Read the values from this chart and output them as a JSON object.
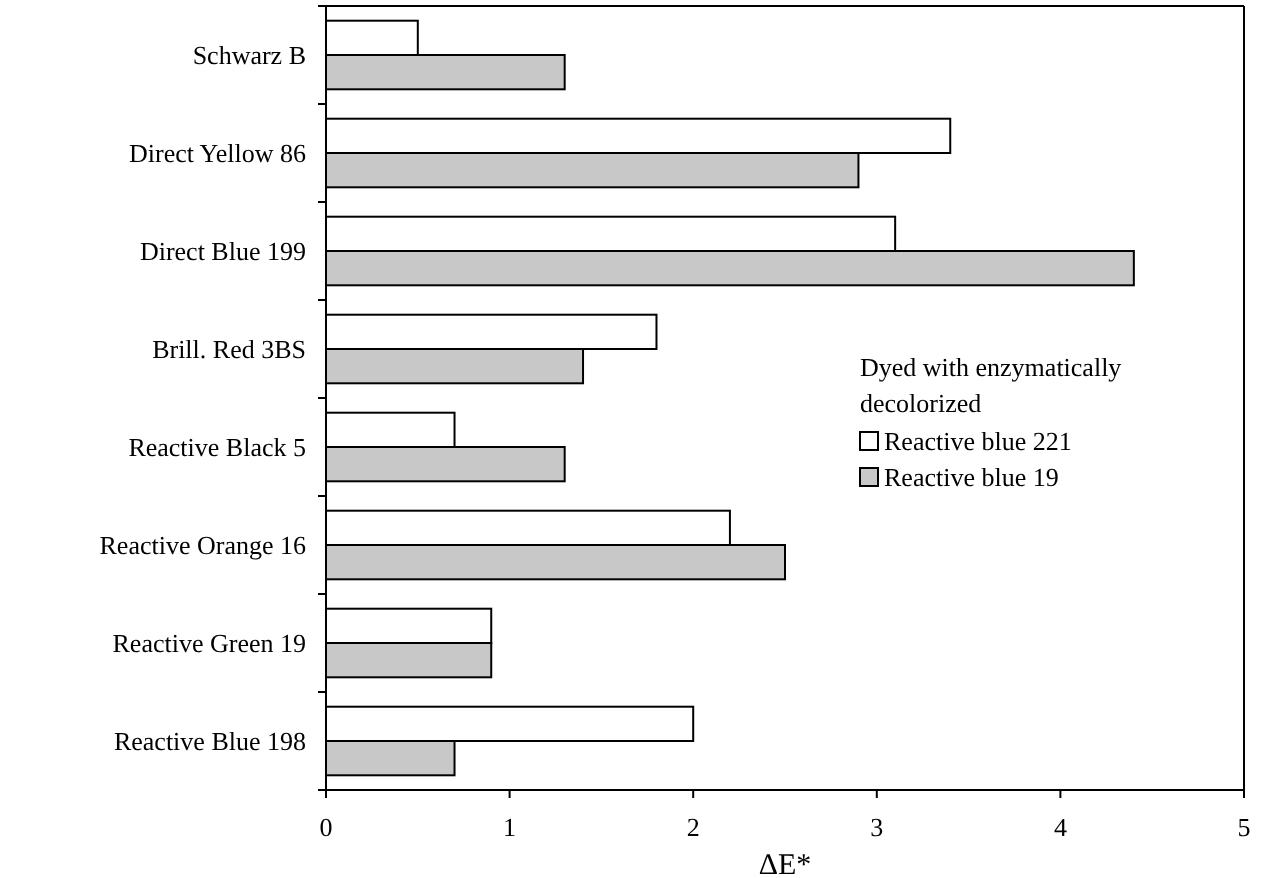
{
  "chart_data": {
    "type": "bar",
    "orientation": "horizontal",
    "xlabel": "ΔE*",
    "legend_title": "Dyed with enzymatically decolorized",
    "legend": "right",
    "grid": false,
    "categories": [
      "Schwarz B",
      "Direct Yellow 86",
      "Direct Blue 199",
      "Brill. Red 3BS",
      "Reactive Black 5",
      "Reactive Orange 16",
      "Reactive Green 19",
      "Reactive Blue 198"
    ],
    "series": [
      {
        "name": "Reactive blue 221",
        "color": "#ffffff",
        "values": [
          0.5,
          3.4,
          3.1,
          1.8,
          0.7,
          2.2,
          0.9,
          2.0
        ]
      },
      {
        "name": "Reactive blue 19",
        "color": "#c8c8c8",
        "values": [
          1.3,
          2.9,
          4.4,
          1.4,
          1.3,
          2.5,
          0.9,
          0.7
        ]
      }
    ],
    "xlim": [
      0,
      5
    ],
    "xticks": [
      0,
      1,
      2,
      3,
      4,
      5
    ]
  }
}
